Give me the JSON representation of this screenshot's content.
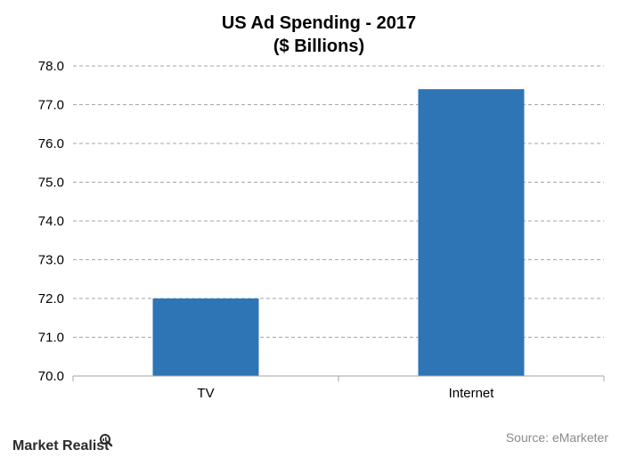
{
  "chart_data": {
    "type": "bar",
    "title": "US Ad Spending - 2017",
    "subtitle": "($ Billions)",
    "categories": [
      "TV",
      "Internet"
    ],
    "values": [
      72.0,
      77.4
    ],
    "xlabel": "",
    "ylabel": "",
    "ylim": [
      70.0,
      78.0
    ],
    "yticks": [
      "70.0",
      "71.0",
      "72.0",
      "73.0",
      "74.0",
      "75.0",
      "76.0",
      "77.0",
      "78.0"
    ],
    "grid": true,
    "bar_color": "#2E75B6",
    "legend": "none"
  },
  "footer": {
    "source": "Source: eMarketer",
    "brand": "Market Realist"
  },
  "colors": {
    "bar": "#2E75B6",
    "grid": "#a6a6a6",
    "axis": "#a6a6a6",
    "source": "#8a8a8a"
  }
}
